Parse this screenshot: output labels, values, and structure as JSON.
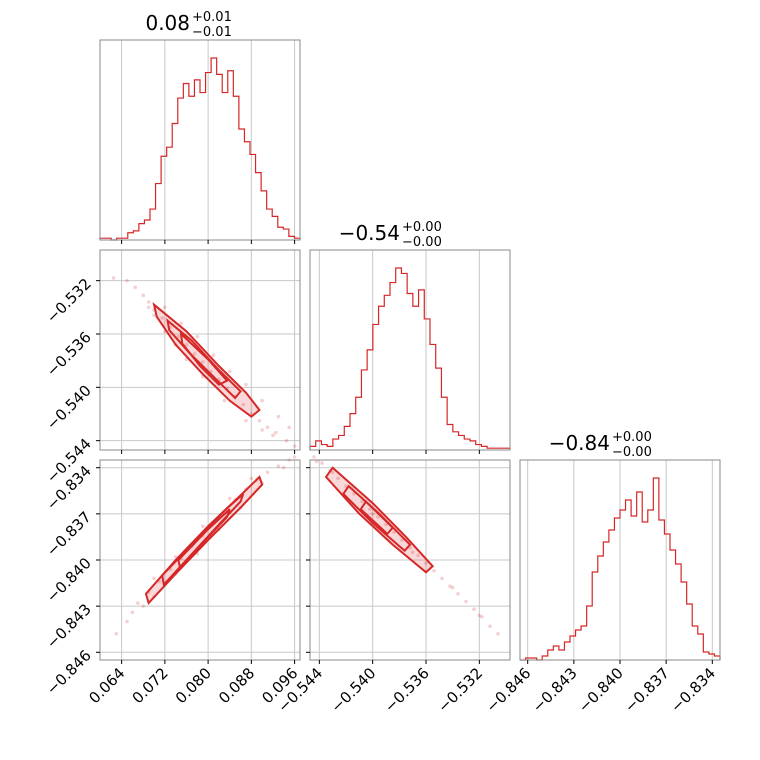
{
  "chart_data": {
    "type": "corner",
    "color": "#d62728",
    "grid": true,
    "parameters": [
      {
        "median": "0.08",
        "plus": "+0.01",
        "minus": "−0.01",
        "range": [
          0.06,
          0.097
        ],
        "ticks": [
          0.064,
          0.072,
          0.08,
          0.088,
          0.096
        ],
        "tick_labels": [
          "0.064",
          "0.072",
          "0.080",
          "0.088",
          "0.096"
        ],
        "hist": [
          1,
          1,
          0,
          1,
          1,
          4,
          5,
          9,
          11,
          17,
          31,
          46,
          51,
          64,
          78,
          86,
          79,
          88,
          81,
          92,
          100,
          91,
          81,
          93,
          79,
          61,
          54,
          47,
          37,
          27,
          17,
          13,
          7,
          6,
          2,
          1
        ]
      },
      {
        "median": "−0.54",
        "plus": "+0.00",
        "minus": "−0.00",
        "range": [
          -0.5447,
          -0.5297
        ],
        "ticks": [
          -0.544,
          -0.54,
          -0.536,
          -0.532
        ],
        "tick_labels": [
          "−0.544",
          "−0.540",
          "−0.536",
          "−0.532"
        ],
        "hist": [
          2,
          5,
          3,
          2,
          6,
          8,
          13,
          20,
          29,
          44,
          55,
          69,
          79,
          85,
          92,
          100,
          97,
          86,
          79,
          88,
          72,
          58,
          45,
          29,
          14,
          10,
          8,
          6,
          5,
          3,
          2,
          1,
          1,
          1,
          1
        ]
      },
      {
        "median": "−0.84",
        "plus": "+0.00",
        "minus": "−0.00",
        "range": [
          -0.8465,
          -0.8335
        ],
        "ticks": [
          -0.846,
          -0.843,
          -0.84,
          -0.837,
          -0.834
        ],
        "tick_labels": [
          "−0.846",
          "−0.843",
          "−0.840",
          "−0.837",
          "−0.834"
        ],
        "hist": [
          0,
          1,
          1,
          0,
          2,
          5,
          7,
          5,
          9,
          12,
          15,
          17,
          27,
          44,
          52,
          59,
          65,
          71,
          75,
          80,
          72,
          84,
          69,
          75,
          91,
          70,
          63,
          55,
          48,
          39,
          28,
          17,
          13,
          4,
          3,
          2
        ]
      }
    ],
    "pairs": [
      {
        "x_param": 0,
        "y_param": 1,
        "points": [
          [
            0.0625,
            -0.5318
          ],
          [
            0.065,
            -0.532
          ],
          [
            0.0665,
            -0.5325
          ],
          [
            0.068,
            -0.5331
          ],
          [
            0.069,
            -0.5336
          ],
          [
            0.07,
            -0.5342
          ],
          [
            0.0715,
            -0.5348
          ],
          [
            0.073,
            -0.5355
          ],
          [
            0.0745,
            -0.5362
          ],
          [
            0.076,
            -0.5368
          ],
          [
            0.0775,
            -0.5375
          ],
          [
            0.079,
            -0.5381
          ],
          [
            0.0805,
            -0.5388
          ],
          [
            0.082,
            -0.5394
          ],
          [
            0.0835,
            -0.5401
          ],
          [
            0.085,
            -0.5407
          ],
          [
            0.0865,
            -0.5413
          ],
          [
            0.088,
            -0.542
          ],
          [
            0.0895,
            -0.5425
          ],
          [
            0.091,
            -0.543
          ],
          [
            0.0925,
            -0.5434
          ],
          [
            0.0945,
            -0.544
          ],
          [
            0.096,
            -0.5444
          ],
          [
            0.092,
            -0.5436
          ],
          [
            0.09,
            -0.5432
          ],
          [
            0.087,
            -0.5425
          ],
          [
            0.083,
            -0.541
          ],
          [
            0.079,
            -0.5392
          ],
          [
            0.076,
            -0.5379
          ],
          [
            0.074,
            -0.5368
          ],
          [
            0.072,
            -0.5358
          ],
          [
            0.07,
            -0.5346
          ],
          [
            0.069,
            -0.534
          ],
          [
            0.072,
            -0.534
          ],
          [
            0.075,
            -0.5352
          ],
          [
            0.078,
            -0.5362
          ],
          [
            0.081,
            -0.5376
          ],
          [
            0.084,
            -0.5388
          ],
          [
            0.087,
            -0.5398
          ],
          [
            0.09,
            -0.541
          ],
          [
            0.093,
            -0.5422
          ],
          [
            0.095,
            -0.543
          ]
        ],
        "contours": [
          [
            [
              0.07,
              -0.5338
            ],
            [
              0.076,
              -0.5358
            ],
            [
              0.082,
              -0.5384
            ],
            [
              0.087,
              -0.5404
            ],
            [
              0.0895,
              -0.5417
            ],
            [
              0.088,
              -0.5422
            ],
            [
              0.084,
              -0.541
            ],
            [
              0.079,
              -0.539
            ],
            [
              0.074,
              -0.5368
            ],
            [
              0.0705,
              -0.5347
            ]
          ],
          [
            [
              0.0725,
              -0.535
            ],
            [
              0.077,
              -0.5365
            ],
            [
              0.082,
              -0.5387
            ],
            [
              0.086,
              -0.5403
            ],
            [
              0.085,
              -0.5408
            ],
            [
              0.081,
              -0.5392
            ],
            [
              0.0765,
              -0.5374
            ],
            [
              0.0728,
              -0.5357
            ]
          ],
          [
            [
              0.075,
              -0.536
            ],
            [
              0.08,
              -0.5379
            ],
            [
              0.0835,
              -0.5395
            ],
            [
              0.082,
              -0.5398
            ],
            [
              0.0785,
              -0.5384
            ],
            [
              0.0752,
              -0.5367
            ]
          ]
        ]
      },
      {
        "x_param": 0,
        "y_param": 2,
        "points": [
          [
            0.063,
            -0.8448
          ],
          [
            0.065,
            -0.844
          ],
          [
            0.066,
            -0.8434
          ],
          [
            0.067,
            -0.8428
          ],
          [
            0.069,
            -0.8421
          ],
          [
            0.071,
            -0.8414
          ],
          [
            0.073,
            -0.8406
          ],
          [
            0.075,
            -0.8399
          ],
          [
            0.077,
            -0.8391
          ],
          [
            0.079,
            -0.8384
          ],
          [
            0.081,
            -0.8376
          ],
          [
            0.083,
            -0.8369
          ],
          [
            0.085,
            -0.8361
          ],
          [
            0.087,
            -0.8354
          ],
          [
            0.089,
            -0.8348
          ],
          [
            0.091,
            -0.8343
          ],
          [
            0.093,
            -0.8339
          ],
          [
            0.095,
            -0.8335
          ],
          [
            0.096,
            -0.8333
          ],
          [
            0.068,
            -0.843
          ],
          [
            0.07,
            -0.8424
          ],
          [
            0.074,
            -0.8409
          ],
          [
            0.078,
            -0.8396
          ],
          [
            0.082,
            -0.838
          ],
          [
            0.086,
            -0.8366
          ],
          [
            0.09,
            -0.835
          ],
          [
            0.094,
            -0.834
          ],
          [
            0.07,
            -0.8412
          ],
          [
            0.074,
            -0.8398
          ],
          [
            0.079,
            -0.8378
          ],
          [
            0.084,
            -0.836
          ],
          [
            0.088,
            -0.8347
          ]
        ],
        "contours": [
          [
            [
              0.0685,
              -0.8422
            ],
            [
              0.074,
              -0.84
            ],
            [
              0.08,
              -0.8378
            ],
            [
              0.086,
              -0.8358
            ],
            [
              0.0895,
              -0.8346
            ],
            [
              0.09,
              -0.8351
            ],
            [
              0.086,
              -0.8366
            ],
            [
              0.08,
              -0.8387
            ],
            [
              0.074,
              -0.8409
            ],
            [
              0.069,
              -0.8428
            ]
          ],
          [
            [
              0.0715,
              -0.841
            ],
            [
              0.077,
              -0.839
            ],
            [
              0.083,
              -0.8368
            ],
            [
              0.0865,
              -0.8357
            ],
            [
              0.086,
              -0.8362
            ],
            [
              0.082,
              -0.8377
            ],
            [
              0.0765,
              -0.8398
            ],
            [
              0.0718,
              -0.8416
            ]
          ],
          [
            [
              0.0745,
              -0.84
            ],
            [
              0.08,
              -0.838
            ],
            [
              0.084,
              -0.8367
            ],
            [
              0.0835,
              -0.8372
            ],
            [
              0.0795,
              -0.8387
            ],
            [
              0.0748,
              -0.8405
            ]
          ]
        ]
      },
      {
        "x_param": 1,
        "y_param": 2,
        "points": [
          [
            -0.5444,
            -0.8333
          ],
          [
            -0.5438,
            -0.8337
          ],
          [
            -0.5432,
            -0.8342
          ],
          [
            -0.5426,
            -0.8347
          ],
          [
            -0.542,
            -0.8352
          ],
          [
            -0.5414,
            -0.8357
          ],
          [
            -0.5408,
            -0.8362
          ],
          [
            -0.5402,
            -0.8367
          ],
          [
            -0.5396,
            -0.8372
          ],
          [
            -0.539,
            -0.8377
          ],
          [
            -0.5384,
            -0.8382
          ],
          [
            -0.5378,
            -0.8387
          ],
          [
            -0.5372,
            -0.8392
          ],
          [
            -0.5366,
            -0.8397
          ],
          [
            -0.536,
            -0.8402
          ],
          [
            -0.5354,
            -0.8407
          ],
          [
            -0.5348,
            -0.8412
          ],
          [
            -0.5342,
            -0.8417
          ],
          [
            -0.5336,
            -0.8422
          ],
          [
            -0.533,
            -0.8427
          ],
          [
            -0.5324,
            -0.8432
          ],
          [
            -0.5318,
            -0.8437
          ],
          [
            -0.5312,
            -0.8443
          ],
          [
            -0.5306,
            -0.8448
          ],
          [
            -0.5442,
            -0.8336
          ],
          [
            -0.543,
            -0.8343
          ],
          [
            -0.54,
            -0.837
          ],
          [
            -0.537,
            -0.8395
          ],
          [
            -0.534,
            -0.8418
          ],
          [
            -0.532,
            -0.8436
          ]
        ],
        "contours": [
          [
            [
              -0.543,
              -0.834
            ],
            [
              -0.54,
              -0.8363
            ],
            [
              -0.5375,
              -0.8385
            ],
            [
              -0.5355,
              -0.8404
            ],
            [
              -0.536,
              -0.8408
            ],
            [
              -0.5385,
              -0.839
            ],
            [
              -0.541,
              -0.837
            ],
            [
              -0.5435,
              -0.8346
            ]
          ],
          [
            [
              -0.5418,
              -0.8352
            ],
            [
              -0.5395,
              -0.837
            ],
            [
              -0.5372,
              -0.839
            ],
            [
              -0.5376,
              -0.8394
            ],
            [
              -0.54,
              -0.8376
            ],
            [
              -0.5422,
              -0.8357
            ]
          ],
          [
            [
              -0.5405,
              -0.8362
            ],
            [
              -0.5385,
              -0.8379
            ],
            [
              -0.5389,
              -0.8383
            ],
            [
              -0.5409,
              -0.8367
            ]
          ]
        ]
      }
    ]
  }
}
